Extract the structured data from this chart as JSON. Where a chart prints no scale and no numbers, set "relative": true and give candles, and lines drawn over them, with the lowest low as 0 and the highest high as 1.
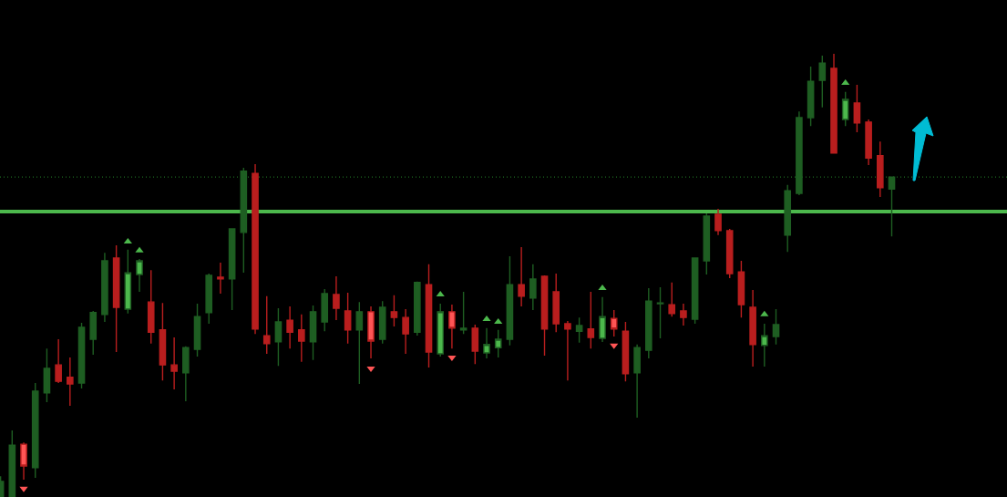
{
  "chart_data": {
    "type": "candlestick",
    "relative": true,
    "tick_labels": false,
    "categories": [
      null,
      null,
      null,
      null,
      null,
      null,
      null,
      null,
      null,
      null,
      null,
      null,
      null,
      null,
      null,
      null,
      null,
      null,
      null,
      null,
      null,
      null,
      null,
      null,
      null,
      null,
      null,
      null,
      null,
      null,
      null,
      null,
      null,
      null,
      null,
      null,
      null,
      null,
      null,
      null,
      null,
      null,
      null,
      null,
      null,
      null,
      null,
      null,
      null,
      null,
      null,
      null,
      null,
      null,
      null,
      null,
      null,
      null,
      null,
      null,
      null,
      null,
      null,
      null,
      null,
      null,
      null,
      null,
      null,
      null,
      null,
      null,
      null,
      null,
      null,
      null,
      null,
      null
    ],
    "ohlc": [
      [
        0,
        0.047,
        0,
        0.035
      ],
      [
        0,
        0.15,
        0,
        0.117
      ],
      [
        0.119,
        0.123,
        0.039,
        0.07
      ],
      [
        0.066,
        0.257,
        0.043,
        0.239
      ],
      [
        0.235,
        0.335,
        0.214,
        0.29
      ],
      [
        0.298,
        0.356,
        0.257,
        0.261
      ],
      [
        0.27,
        0.315,
        0.206,
        0.255
      ],
      [
        0.257,
        0.393,
        0.245,
        0.383
      ],
      [
        0.356,
        0.42,
        0.321,
        0.416
      ],
      [
        0.412,
        0.551,
        0.395,
        0.533
      ],
      [
        0.539,
        0.568,
        0.327,
        0.428
      ],
      [
        0.424,
        0.558,
        0.414,
        0.506
      ],
      [
        0.502,
        0.537,
        0.463,
        0.533
      ],
      [
        0.44,
        0.512,
        0.346,
        0.372
      ],
      [
        0.377,
        0.438,
        0.263,
        0.298
      ],
      [
        0.298,
        0.36,
        0.243,
        0.284
      ],
      [
        0.28,
        0.34,
        0.216,
        0.337
      ],
      [
        0.333,
        0.436,
        0.317,
        0.407
      ],
      [
        0.416,
        0.504,
        0.391,
        0.5
      ],
      [
        0.496,
        0.529,
        0.459,
        0.492
      ],
      [
        0.492,
        0.605,
        0.422,
        0.605
      ],
      [
        0.597,
        0.743,
        0.506,
        0.735
      ],
      [
        0.73,
        0.751,
        0.368,
        0.379
      ],
      [
        0.364,
        0.453,
        0.323,
        0.346
      ],
      [
        0.35,
        0.426,
        0.296,
        0.395
      ],
      [
        0.399,
        0.43,
        0.335,
        0.372
      ],
      [
        0.377,
        0.412,
        0.305,
        0.352
      ],
      [
        0.35,
        0.432,
        0.309,
        0.418
      ],
      [
        0.395,
        0.469,
        0.374,
        0.459
      ],
      [
        0.457,
        0.498,
        0.399,
        0.426
      ],
      [
        0.42,
        0.461,
        0.346,
        0.377
      ],
      [
        0.377,
        0.44,
        0.255,
        0.418
      ],
      [
        0.418,
        0.43,
        0.313,
        0.352
      ],
      [
        0.356,
        0.442,
        0.346,
        0.428
      ],
      [
        0.418,
        0.455,
        0.385,
        0.405
      ],
      [
        0.405,
        0.424,
        0.323,
        0.368
      ],
      [
        0.372,
        0.486,
        0.364,
        0.484
      ],
      [
        0.479,
        0.525,
        0.292,
        0.327
      ],
      [
        0.323,
        0.436,
        0.317,
        0.418
      ],
      [
        0.418,
        0.434,
        0.335,
        0.381
      ],
      [
        0.377,
        0.463,
        0.368,
        0.381
      ],
      [
        0.381,
        0.389,
        0.3,
        0.329
      ],
      [
        0.325,
        0.381,
        0.313,
        0.344
      ],
      [
        0.337,
        0.377,
        0.315,
        0.356
      ],
      [
        0.356,
        0.543,
        0.342,
        0.479
      ],
      [
        0.479,
        0.564,
        0.43,
        0.453
      ],
      [
        0.449,
        0.525,
        0.422,
        0.492
      ],
      [
        0.498,
        0.5,
        0.319,
        0.379
      ],
      [
        0.463,
        0.504,
        0.372,
        0.391
      ],
      [
        0.391,
        0.397,
        0.263,
        0.379
      ],
      [
        0.374,
        0.405,
        0.348,
        0.387
      ],
      [
        0.379,
        0.463,
        0.335,
        0.36
      ],
      [
        0.358,
        0.451,
        0.35,
        0.407
      ],
      [
        0.403,
        0.422,
        0.362,
        0.379
      ],
      [
        0.374,
        0.395,
        0.261,
        0.278
      ],
      [
        0.28,
        0.344,
        0.179,
        0.337
      ],
      [
        0.331,
        0.471,
        0.313,
        0.442
      ],
      [
        0.436,
        0.473,
        0.358,
        0.438
      ],
      [
        0.434,
        0.484,
        0.407,
        0.414
      ],
      [
        0.42,
        0.436,
        0.387,
        0.405
      ],
      [
        0.401,
        0.539,
        0.391,
        0.539
      ],
      [
        0.533,
        0.64,
        0.502,
        0.634
      ],
      [
        0.638,
        0.65,
        0.591,
        0.601
      ],
      [
        0.601,
        0.605,
        0.494,
        0.504
      ],
      [
        0.508,
        0.533,
        0.405,
        0.434
      ],
      [
        0.428,
        0.467,
        0.294,
        0.344
      ],
      [
        0.342,
        0.391,
        0.294,
        0.364
      ],
      [
        0.362,
        0.424,
        0.344,
        0.389
      ],
      [
        0.591,
        0.704,
        0.553,
        0.691
      ],
      [
        0.685,
        0.87,
        0.681,
        0.856
      ],
      [
        0.856,
        0.971,
        0.837,
        0.938
      ],
      [
        0.94,
        0.996,
        0.879,
        0.979
      ],
      [
        0.967,
        1,
        0.776,
        0.776
      ],
      [
        0.852,
        0.914,
        0.837,
        0.897
      ],
      [
        0.889,
        0.93,
        0.823,
        0.844
      ],
      [
        0.846,
        0.852,
        0.749,
        0.765
      ],
      [
        0.77,
        0.802,
        0.677,
        0.698
      ],
      [
        0.695,
        0.722,
        0.588,
        0.722
      ]
    ],
    "colors": [
      "#1e5e22",
      "#1e5e22",
      "#ff5555",
      "#1e5e22",
      "#1e5e22",
      "#b91e1e",
      "#b91e1e",
      "#1e5e22",
      "#1e5e22",
      "#1e5e22",
      "#b91e1e",
      "#4cb84c",
      "#4cb84c",
      "#b91e1e",
      "#b91e1e",
      "#b91e1e",
      "#1e5e22",
      "#1e5e22",
      "#1e5e22",
      "#b91e1e",
      "#1e5e22",
      "#1e5e22",
      "#b91e1e",
      "#b91e1e",
      "#1e5e22",
      "#b91e1e",
      "#b91e1e",
      "#1e5e22",
      "#1e5e22",
      "#b91e1e",
      "#b91e1e",
      "#1e5e22",
      "#ff5555",
      "#1e5e22",
      "#b91e1e",
      "#b91e1e",
      "#1e5e22",
      "#b91e1e",
      "#4cb84c",
      "#ff5555",
      "#1e5e22",
      "#b91e1e",
      "#4cb84c",
      "#4cb84c",
      "#1e5e22",
      "#b91e1e",
      "#1e5e22",
      "#b91e1e",
      "#b91e1e",
      "#b91e1e",
      "#1e5e22",
      "#b91e1e",
      "#4cb84c",
      "#ff5555",
      "#b91e1e",
      "#1e5e22",
      "#1e5e22",
      "#1e5e22",
      "#b91e1e",
      "#b91e1e",
      "#1e5e22",
      "#1e5e22",
      "#b91e1e",
      "#b91e1e",
      "#b91e1e",
      "#b91e1e",
      "#4cb84c",
      "#1e5e22",
      "#1e5e22",
      "#1e5e22",
      "#1e5e22",
      "#1e5e22",
      "#b91e1e",
      "#4cb84c",
      "#b91e1e",
      "#b91e1e",
      "#b91e1e",
      "#1e5e22"
    ],
    "series": [
      {
        "type": "scatter",
        "marker": "triangle",
        "color": "#4cb84c",
        "values": [
          null,
          null,
          null,
          null,
          null,
          null,
          null,
          null,
          null,
          null,
          null,
          0.576,
          0.556,
          null,
          null,
          null,
          null,
          null,
          null,
          null,
          null,
          null,
          null,
          null,
          null,
          null,
          null,
          null,
          null,
          null,
          null,
          null,
          null,
          null,
          null,
          null,
          null,
          null,
          0.457,
          null,
          null,
          null,
          0.401,
          0.395,
          null,
          null,
          null,
          null,
          null,
          null,
          null,
          null,
          0.471,
          null,
          null,
          null,
          null,
          null,
          null,
          null,
          null,
          null,
          null,
          null,
          null,
          null,
          0.412,
          null,
          null,
          null,
          null,
          null,
          null,
          0.934,
          null,
          null,
          null,
          null
        ]
      },
      {
        "type": "scatter",
        "marker": "triangle-down",
        "color": "#ff5555",
        "values": [
          null,
          null,
          0.019,
          null,
          null,
          null,
          null,
          null,
          null,
          null,
          null,
          null,
          null,
          null,
          null,
          null,
          null,
          null,
          null,
          null,
          null,
          null,
          null,
          null,
          null,
          null,
          null,
          null,
          null,
          null,
          null,
          null,
          0.29,
          null,
          null,
          null,
          null,
          null,
          null,
          0.315,
          null,
          null,
          null,
          null,
          null,
          null,
          null,
          null,
          null,
          null,
          null,
          null,
          null,
          0.342,
          null,
          null,
          null,
          null,
          null,
          null,
          null,
          null,
          null,
          null,
          null,
          null,
          null,
          null,
          null,
          null,
          null,
          null,
          null,
          null,
          null,
          null,
          null,
          null
        ]
      }
    ],
    "ref_lines": [
      {
        "axis": "y",
        "value": 0.644,
        "color": "#4cb84c",
        "line_style": "solid"
      },
      {
        "axis": "y",
        "value": 0.722,
        "color": "#1e6b22",
        "line_style": "dotted"
      }
    ]
  }
}
